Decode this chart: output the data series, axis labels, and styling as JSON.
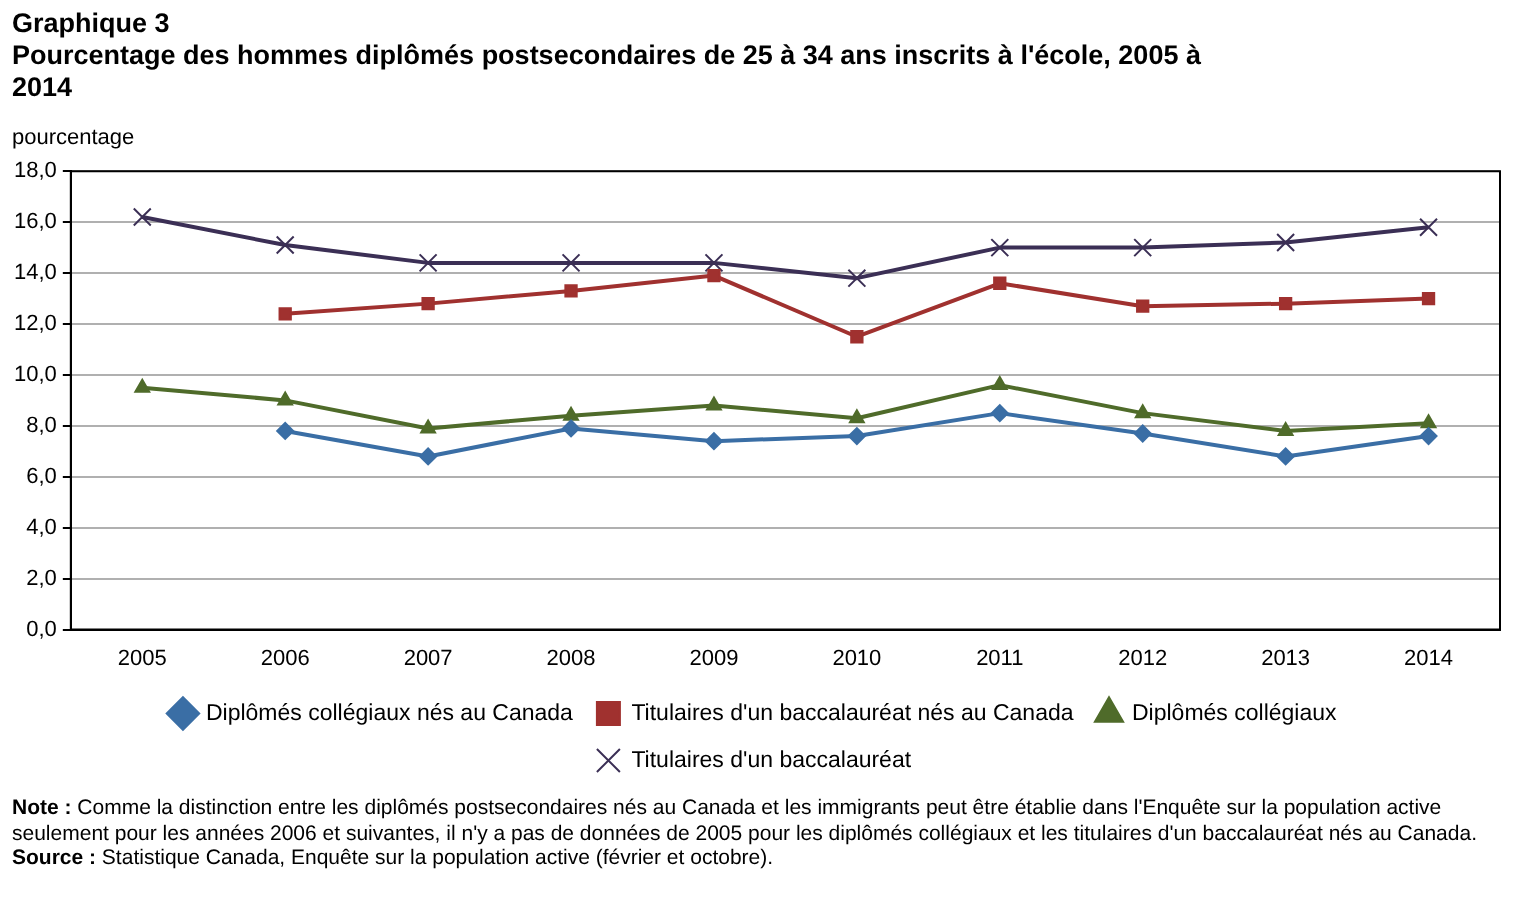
{
  "chart_data": {
    "type": "line",
    "title": "Graphique 3",
    "subtitle": "Pourcentage des hommes diplômés postsecondaires de 25 à 34 ans inscrits à l'école, 2005 à 2014",
    "ylabel": "pourcentage",
    "categories": [
      "2005",
      "2006",
      "2007",
      "2008",
      "2009",
      "2010",
      "2011",
      "2012",
      "2013",
      "2014"
    ],
    "series": [
      {
        "name": "Diplômés collégiaux nés au Canada",
        "color": "#3a6ea5",
        "marker": "diamond",
        "values": [
          null,
          7.8,
          6.8,
          7.9,
          7.4,
          7.6,
          8.5,
          7.7,
          6.8,
          7.6
        ]
      },
      {
        "name": "Titulaires d'un baccalauréat nés au Canada",
        "color": "#a0312f",
        "marker": "square",
        "values": [
          null,
          12.4,
          12.8,
          13.3,
          13.9,
          11.5,
          13.6,
          12.7,
          12.8,
          13.0
        ]
      },
      {
        "name": "Diplômés collégiaux",
        "color": "#4f6b2a",
        "marker": "triangle",
        "values": [
          9.5,
          9.0,
          7.9,
          8.4,
          8.8,
          8.3,
          9.6,
          8.5,
          7.8,
          8.1
        ]
      },
      {
        "name": "Titulaires d'un baccalauréat",
        "color": "#3b2f55",
        "marker": "cross",
        "values": [
          16.2,
          15.1,
          14.4,
          14.4,
          14.4,
          13.8,
          15.0,
          15.0,
          15.2,
          15.8
        ]
      }
    ],
    "ylim": [
      0,
      18
    ],
    "yticks": [
      {
        "value": 0,
        "label": "0,0"
      },
      {
        "value": 2,
        "label": "2,0"
      },
      {
        "value": 4,
        "label": "4,0"
      },
      {
        "value": 6,
        "label": "6,0"
      },
      {
        "value": 8,
        "label": "8,0"
      },
      {
        "value": 10,
        "label": "10,0"
      },
      {
        "value": 12,
        "label": "12,0"
      },
      {
        "value": 14,
        "label": "14,0"
      },
      {
        "value": 16,
        "label": "16,0"
      },
      {
        "value": 18,
        "label": "18,0"
      }
    ],
    "grid": "y",
    "legend": "bottom",
    "annotations": [
      "Note : Comme la distinction entre les diplômés postsecondaires nés au Canada et les immigrants peut être établie dans l'Enquête sur la population active seulement pour les années 2006 et suivantes, il n'y a pas de données de 2005 pour les diplômés collégiaux et les titulaires d'un baccalauréat nés au Canada.",
      "Source : Statistique Canada, Enquête sur la population active (février et octobre)."
    ]
  }
}
